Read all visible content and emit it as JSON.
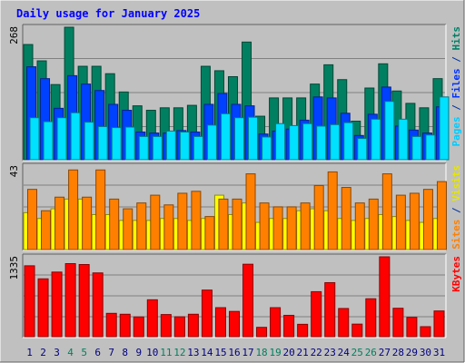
{
  "chart_data": {
    "type": "bar",
    "title": "Daily usage for January 2025",
    "categories": [
      "1",
      "2",
      "3",
      "4",
      "5",
      "6",
      "7",
      "8",
      "9",
      "10",
      "11",
      "12",
      "13",
      "14",
      "15",
      "16",
      "17",
      "18",
      "19",
      "20",
      "21",
      "22",
      "23",
      "24",
      "25",
      "26",
      "27",
      "28",
      "29",
      "30",
      "31"
    ],
    "weekend_days": [
      "4",
      "5",
      "11",
      "12",
      "18",
      "19",
      "25",
      "26"
    ],
    "panels": [
      {
        "id": "pages_files_hits",
        "ymax_label": "268",
        "ylim": [
          0,
          268
        ],
        "grid": true,
        "axis_label_parts": [
          {
            "text": "Pages",
            "color": "#00ccff"
          },
          {
            "text": " / ",
            "color": "#003399"
          },
          {
            "text": "Files",
            "color": "#0033ff"
          },
          {
            "text": " / ",
            "color": "#003399"
          },
          {
            "text": "Hits",
            "color": "#008066"
          }
        ],
        "series": [
          {
            "name": "Hits",
            "color": "#008060",
            "values": [
              233,
              200,
              152,
              268,
              189,
              189,
              174,
              137,
              109,
              100,
              105,
              105,
              110,
              189,
              180,
              168,
              238,
              88,
              125,
              125,
              125,
              153,
              192,
              162,
              78,
              145,
              194,
              139,
              114,
              105,
              164
            ]
          },
          {
            "name": "Files",
            "color": "#0040ff",
            "values": [
              188,
              164,
              104,
              170,
              153,
              140,
              112,
              100,
              56,
              54,
              54,
              59,
              56,
              112,
              134,
              112,
              109,
              52,
              58,
              62,
              80,
              127,
              125,
              94,
              49,
              92,
              147,
              68,
              60,
              54,
              107
            ]
          },
          {
            "name": "Pages",
            "color": "#00e0ff",
            "values": [
              85,
              77,
              85,
              95,
              76,
              67,
              65,
              66,
              47,
              47,
              58,
              56,
              47,
              70,
              93,
              85,
              86,
              46,
              73,
              69,
              73,
              68,
              71,
              75,
              43,
              82,
              118,
              82,
              47,
              50,
              127
            ]
          }
        ]
      },
      {
        "id": "sites_visits",
        "ymax_label": "43",
        "ylim": [
          0,
          43
        ],
        "grid": true,
        "axis_label_parts": [
          {
            "text": "Sites",
            "color": "#ff8000"
          },
          {
            "text": " / ",
            "color": "#003399"
          },
          {
            "text": "Visits",
            "color": "#e6e600"
          }
        ],
        "series": [
          {
            "name": "Visits",
            "color": "#ffff00",
            "values": [
              19,
              16,
              21,
              26,
              26,
              18,
              18,
              15,
              15,
              15,
              16,
              16,
              15,
              16,
              28,
              18,
              24,
              14,
              16,
              16,
              20,
              21,
              20,
              16,
              15,
              16,
              18,
              17,
              15,
              14,
              16
            ]
          },
          {
            "name": "Sites",
            "color": "#ff8000",
            "values": [
              31,
              20,
              27,
              41,
              27,
              41,
              26,
              21,
              24,
              28,
              23,
              29,
              30,
              17,
              26,
              26,
              39,
              24,
              22,
              22,
              24,
              33,
              40,
              32,
              24,
              26,
              39,
              28,
              29,
              31,
              35
            ]
          }
        ]
      },
      {
        "id": "kbytes",
        "ymax_label": "1335",
        "ylim": [
          0,
          1335
        ],
        "grid": true,
        "axis_label_parts": [
          {
            "text": "KBytes",
            "color": "#ff0000"
          }
        ],
        "series": [
          {
            "name": "KBytes",
            "color": "#ff0000",
            "values": [
              1185,
              967,
              1080,
              1221,
              1206,
              1066,
              390,
              375,
              330,
              617,
              370,
              332,
              375,
              779,
              485,
              422,
              1211,
              156,
              485,
              357,
              207,
              752,
              903,
              471,
              210,
              634,
              1335,
              475,
              323,
              167,
              430
            ]
          }
        ]
      }
    ]
  },
  "colors": {
    "background": "#ffffff",
    "frame_outer": "#c0c0c0",
    "plot_area": "#c0c0c0",
    "grid": "#808080",
    "title": "#0000ff",
    "weekday_label": "#000080",
    "weekend_label": "#00805c"
  }
}
